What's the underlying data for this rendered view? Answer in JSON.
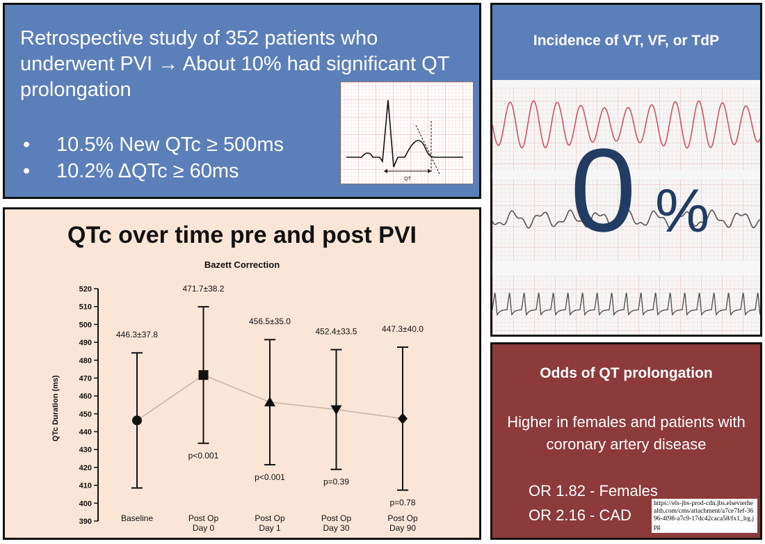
{
  "summary": {
    "headline": "Retrospective study of 352 patients who underwent PVI  → About 10% had significant QT prolongation",
    "bullets": [
      {
        "marker": "•",
        "text": "10.5% New QTc ≥ 500ms"
      },
      {
        "marker": "•",
        "text": "10.2% ΔQTc ≥ 60ms"
      }
    ],
    "ecg_label": "QT"
  },
  "incidence": {
    "title": "Incidence of VT, VF, or TdP",
    "value": "0",
    "unit": "%"
  },
  "chart": {
    "title": "QTc over time pre and post PVI"
  },
  "chart_data": {
    "type": "scatter",
    "subtitle": "Bazett Correction",
    "ylabel": "QTc Duration (ms)",
    "ylim": [
      390,
      520
    ],
    "yticks": [
      390,
      400,
      410,
      420,
      430,
      440,
      450,
      460,
      470,
      480,
      490,
      500,
      510,
      520
    ],
    "categories": [
      [
        "Baseline"
      ],
      [
        "Post Op",
        "Day 0"
      ],
      [
        "Post Op",
        "Day 1"
      ],
      [
        "Post Op",
        "Day 30"
      ],
      [
        "Post Op",
        "Day 90"
      ]
    ],
    "means": [
      446.3,
      471.7,
      456.5,
      452.4,
      447.3
    ],
    "sd": [
      37.8,
      38.2,
      35.0,
      33.5,
      40.0
    ],
    "labels": [
      "446.3±37.8",
      "471.7±38.2",
      "456.5±35.0",
      "452.4±33.5",
      "447.3±40.0"
    ],
    "pvalues": [
      "",
      "p<0.001",
      "p<0.001",
      "p=0.39",
      "p=0.78"
    ],
    "markers": [
      "circle",
      "square",
      "triangle-up",
      "triangle-down",
      "diamond"
    ],
    "marker_color": "#111111",
    "line_color": "#c8b2a6"
  },
  "odds": {
    "title": "Odds of QT prolongation",
    "description": "Higher in females and patients with coronary artery disease",
    "or_females": "OR 1.82 - Females",
    "or_cad": "OR 2.16 - CAD",
    "source": "https://els-jbs-prod-cdn.jbs.elsevierhealth.com/cms/attachment/a7ce7fef-3696-4f98-a7c9-17dc42caca58/fx1_lrg.jpg"
  },
  "colors": {
    "blue_panel": "#5b7fb9",
    "peach_panel": "#fbe5d6",
    "red_panel": "#8c3a3a",
    "navy_text": "#223c63",
    "trace_red": "#c9555d",
    "trace_gray": "#555555"
  }
}
